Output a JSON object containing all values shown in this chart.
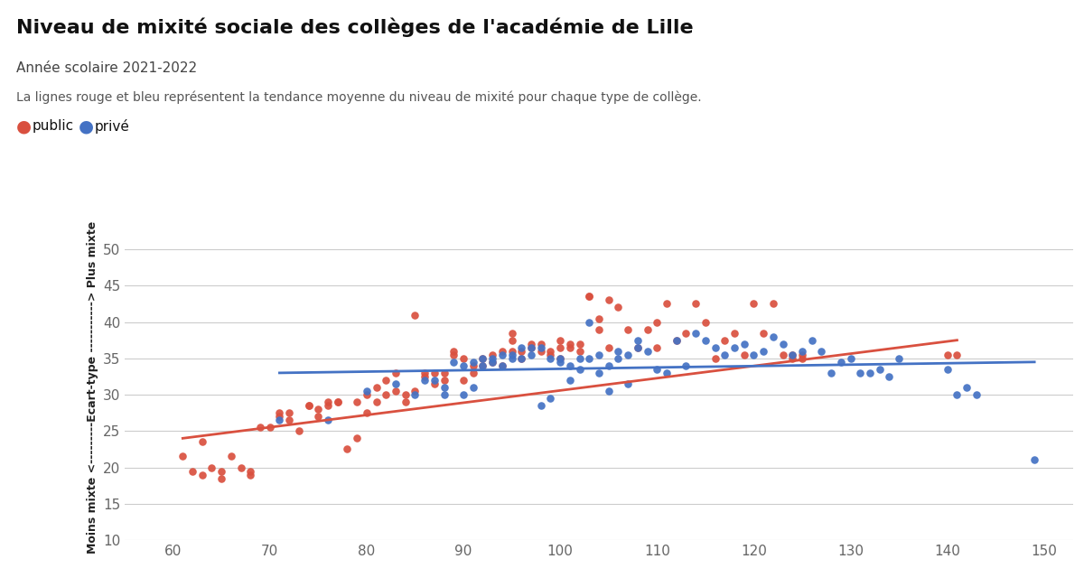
{
  "title": "Niveau de mixité sociale des collèges de l'académie de Lille",
  "subtitle": "Année scolaire 2021-2022",
  "note": "La lignes rouge et bleu représentent la tendance moyenne du niveau de mixité pour chaque type de collège.",
  "xlim": [
    55,
    153
  ],
  "ylim": [
    10,
    52
  ],
  "xticks": [
    60,
    70,
    80,
    90,
    100,
    110,
    120,
    130,
    140,
    150
  ],
  "yticks": [
    10,
    15,
    20,
    25,
    30,
    35,
    40,
    45,
    50
  ],
  "color_public": "#d9503f",
  "color_prive": "#4472c4",
  "background_color": "#ffffff",
  "grid_color": "#cccccc",
  "ylabel_bottom": "Moins mixte <---------",
  "ylabel_mid": "Ecart-type",
  "ylabel_top": "-----------> Plus mixte",
  "public_x": [
    61,
    62,
    63,
    63,
    64,
    65,
    65,
    66,
    67,
    68,
    68,
    69,
    70,
    71,
    71,
    72,
    72,
    73,
    74,
    74,
    75,
    75,
    76,
    76,
    77,
    77,
    78,
    79,
    79,
    80,
    80,
    81,
    81,
    82,
    82,
    83,
    83,
    84,
    84,
    85,
    85,
    86,
    86,
    87,
    87,
    88,
    88,
    89,
    89,
    90,
    90,
    91,
    91,
    92,
    92,
    93,
    93,
    94,
    94,
    95,
    95,
    95,
    96,
    96,
    97,
    97,
    98,
    98,
    99,
    99,
    100,
    100,
    100,
    101,
    101,
    102,
    102,
    103,
    103,
    104,
    104,
    105,
    105,
    106,
    107,
    108,
    109,
    110,
    110,
    111,
    112,
    113,
    114,
    115,
    116,
    117,
    118,
    119,
    120,
    121,
    122,
    123,
    124,
    124,
    125,
    125,
    140,
    141
  ],
  "public_y": [
    21.5,
    19.5,
    23.5,
    19.0,
    20.0,
    19.5,
    18.5,
    21.5,
    20.0,
    19.5,
    19.0,
    25.5,
    25.5,
    27.0,
    27.5,
    27.5,
    26.5,
    25.0,
    28.5,
    28.5,
    27.0,
    28.0,
    29.0,
    28.5,
    29.0,
    29.0,
    22.5,
    24.0,
    29.0,
    27.5,
    30.0,
    29.0,
    31.0,
    30.0,
    32.0,
    30.5,
    33.0,
    30.0,
    29.0,
    41.0,
    30.5,
    33.0,
    32.5,
    31.5,
    33.0,
    32.0,
    33.0,
    35.5,
    36.0,
    32.0,
    35.0,
    33.0,
    34.0,
    34.0,
    35.0,
    34.5,
    35.5,
    36.0,
    34.0,
    36.0,
    37.5,
    38.5,
    35.0,
    36.0,
    36.5,
    37.0,
    36.0,
    37.0,
    35.5,
    36.0,
    35.0,
    36.5,
    37.5,
    36.5,
    37.0,
    36.0,
    37.0,
    43.5,
    43.5,
    40.5,
    39.0,
    36.5,
    43.0,
    42.0,
    39.0,
    36.5,
    39.0,
    40.0,
    36.5,
    42.5,
    37.5,
    38.5,
    42.5,
    40.0,
    35.0,
    37.5,
    38.5,
    35.5,
    42.5,
    38.5,
    42.5,
    35.5,
    35.0,
    35.5,
    35.5,
    35.0,
    35.5,
    35.5
  ],
  "prive_x": [
    71,
    76,
    80,
    83,
    85,
    86,
    87,
    88,
    88,
    89,
    90,
    90,
    91,
    91,
    92,
    92,
    93,
    93,
    94,
    94,
    95,
    95,
    96,
    96,
    97,
    97,
    98,
    98,
    99,
    99,
    100,
    100,
    101,
    101,
    102,
    102,
    103,
    103,
    104,
    104,
    105,
    105,
    106,
    106,
    107,
    107,
    108,
    108,
    109,
    110,
    111,
    112,
    113,
    114,
    115,
    116,
    117,
    118,
    119,
    120,
    121,
    122,
    123,
    124,
    125,
    126,
    127,
    128,
    129,
    130,
    131,
    132,
    133,
    134,
    135,
    140,
    141,
    142,
    143,
    149
  ],
  "prive_y": [
    26.5,
    26.5,
    30.5,
    31.5,
    30.0,
    32.0,
    32.0,
    31.0,
    30.0,
    34.5,
    34.0,
    30.0,
    34.5,
    31.0,
    35.0,
    34.0,
    35.0,
    34.5,
    35.5,
    34.0,
    35.5,
    35.0,
    36.5,
    35.0,
    35.5,
    36.5,
    36.5,
    28.5,
    29.5,
    35.0,
    35.0,
    34.5,
    34.0,
    32.0,
    33.5,
    35.0,
    40.0,
    35.0,
    33.0,
    35.5,
    34.0,
    30.5,
    36.0,
    35.0,
    31.5,
    35.5,
    36.5,
    37.5,
    36.0,
    33.5,
    33.0,
    37.5,
    34.0,
    38.5,
    37.5,
    36.5,
    35.5,
    36.5,
    37.0,
    35.5,
    36.0,
    38.0,
    37.0,
    35.5,
    36.0,
    37.5,
    36.0,
    33.0,
    34.5,
    35.0,
    33.0,
    33.0,
    33.5,
    32.5,
    35.0,
    33.5,
    30.0,
    31.0,
    30.0,
    21.0
  ]
}
